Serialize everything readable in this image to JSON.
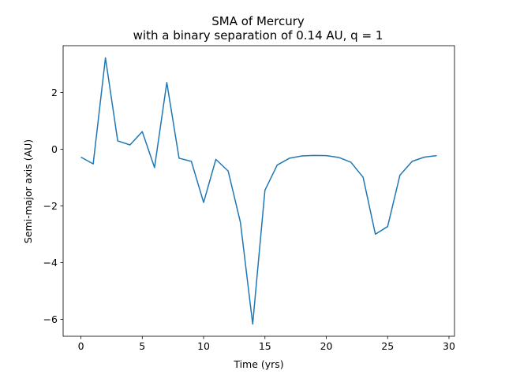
{
  "chart_data": {
    "type": "line",
    "title": "SMA of Mercury",
    "subtitle": "with a binary separation of 0.14 AU, q = 1",
    "xlabel": "Time (yrs)",
    "ylabel": "Semi-major axis (AU)",
    "xlim": [
      -1.45,
      30.45
    ],
    "ylim": [
      -6.6,
      3.65
    ],
    "xticks": [
      0,
      5,
      10,
      15,
      20,
      25,
      30
    ],
    "yticks": [
      -6,
      -4,
      -2,
      0,
      2
    ],
    "xtick_labels": [
      "0",
      "5",
      "10",
      "15",
      "20",
      "25",
      "30"
    ],
    "ytick_labels": [
      "−6",
      "−4",
      "−2",
      "0",
      "2"
    ],
    "grid": false,
    "legend": "none",
    "series": [
      {
        "color": "#1f77b4",
        "x": [
          0,
          1,
          2,
          3,
          4,
          5,
          6,
          7,
          8,
          9,
          10,
          11,
          12,
          13,
          14,
          15,
          16,
          17,
          18,
          19,
          20,
          21,
          22,
          23,
          24,
          25,
          26,
          27,
          28,
          29
        ],
        "y": [
          -0.28,
          -0.52,
          3.22,
          0.29,
          0.15,
          0.62,
          -0.65,
          2.35,
          -0.32,
          -0.43,
          -1.88,
          -0.36,
          -0.77,
          -2.58,
          -6.17,
          -1.45,
          -0.56,
          -0.32,
          -0.24,
          -0.22,
          -0.23,
          -0.29,
          -0.46,
          -0.99,
          -3.0,
          -2.73,
          -0.92,
          -0.43,
          -0.28,
          -0.23
        ]
      }
    ]
  }
}
